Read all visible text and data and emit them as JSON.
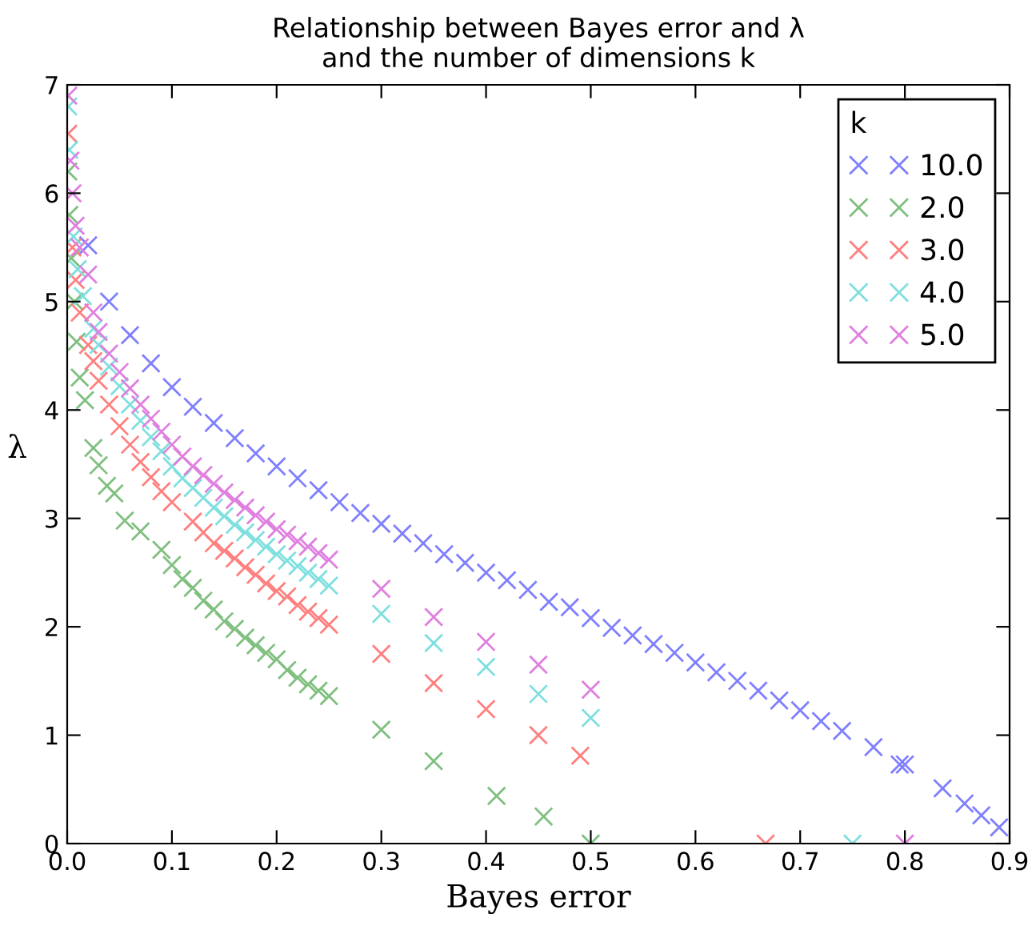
{
  "chart_data": {
    "type": "scatter",
    "title": "Relationship between Bayes error and λ\nand the number of dimensions k",
    "xlabel": "Bayes error",
    "ylabel": "λ",
    "legend_title": "k",
    "legend": "top right",
    "marker": "cross",
    "grid": false,
    "xlim": [
      0,
      0.9
    ],
    "xticks": [
      {
        "value": 0,
        "label": "0.0"
      },
      0.1,
      0.2,
      0.3,
      0.4,
      0.5,
      0.6,
      0.7,
      0.8,
      0.9
    ],
    "ylim": [
      0,
      7
    ],
    "yticks": [
      0,
      1,
      2,
      3,
      4,
      5,
      6,
      7
    ],
    "series": [
      {
        "name": "10.0",
        "color": "#7f7fff",
        "x": [
          0.02,
          0.04,
          0.06,
          0.08,
          0.1,
          0.12,
          0.14,
          0.16,
          0.18,
          0.2,
          0.22,
          0.24,
          0.26,
          0.28,
          0.3,
          0.32,
          0.34,
          0.36,
          0.38,
          0.4,
          0.42,
          0.44,
          0.46,
          0.48,
          0.5,
          0.52,
          0.54,
          0.56,
          0.58,
          0.6,
          0.62,
          0.64,
          0.66,
          0.68,
          0.7,
          0.72,
          0.74,
          0.77,
          0.795,
          0.8,
          0.836,
          0.857,
          0.873,
          0.89
        ],
        "values": [
          5.52,
          5.0,
          4.69,
          4.43,
          4.21,
          4.03,
          3.88,
          3.74,
          3.6,
          3.48,
          3.37,
          3.26,
          3.15,
          3.05,
          2.95,
          2.86,
          2.77,
          2.67,
          2.59,
          2.5,
          2.43,
          2.34,
          2.23,
          2.18,
          2.08,
          1.99,
          1.92,
          1.84,
          1.76,
          1.67,
          1.58,
          1.5,
          1.41,
          1.32,
          1.23,
          1.13,
          1.04,
          0.89,
          0.73,
          0.73,
          0.51,
          0.37,
          0.26,
          0.15
        ]
      },
      {
        "name": "2.0",
        "color": "#7fbf7f",
        "x": [
          0.001,
          0.002,
          0.004,
          0.007,
          0.009,
          0.012,
          0.017,
          0.025,
          0.03,
          0.038,
          0.045,
          0.055,
          0.07,
          0.09,
          0.1,
          0.11,
          0.12,
          0.13,
          0.14,
          0.15,
          0.16,
          0.17,
          0.18,
          0.19,
          0.2,
          0.21,
          0.22,
          0.23,
          0.24,
          0.25,
          0.3,
          0.35,
          0.41,
          0.455,
          0.5
        ],
        "values": [
          6.2,
          5.8,
          5.4,
          5.0,
          4.63,
          4.3,
          4.09,
          3.65,
          3.49,
          3.3,
          3.23,
          2.98,
          2.88,
          2.71,
          2.57,
          2.44,
          2.36,
          2.24,
          2.16,
          2.05,
          1.98,
          1.9,
          1.83,
          1.76,
          1.7,
          1.6,
          1.53,
          1.47,
          1.41,
          1.36,
          1.05,
          0.76,
          0.44,
          0.25,
          0.0
        ]
      },
      {
        "name": "3.0",
        "color": "#ff7f7f",
        "x": [
          0.001,
          0.003,
          0.005,
          0.008,
          0.012,
          0.02,
          0.025,
          0.03,
          0.04,
          0.05,
          0.06,
          0.07,
          0.08,
          0.09,
          0.1,
          0.12,
          0.13,
          0.14,
          0.15,
          0.16,
          0.17,
          0.18,
          0.19,
          0.2,
          0.21,
          0.22,
          0.23,
          0.24,
          0.25,
          0.3,
          0.35,
          0.4,
          0.45,
          0.49,
          0.667
        ],
        "values": [
          6.55,
          null,
          5.5,
          5.2,
          4.9,
          4.6,
          4.45,
          4.27,
          4.05,
          3.85,
          3.68,
          3.52,
          3.38,
          3.25,
          3.15,
          2.97,
          2.87,
          2.77,
          2.7,
          2.63,
          2.55,
          2.48,
          2.4,
          2.33,
          2.28,
          2.2,
          2.14,
          2.08,
          2.02,
          1.75,
          1.48,
          1.24,
          1.0,
          0.81,
          0.0
        ]
      },
      {
        "name": "4.0",
        "color": "#7fdfdf",
        "x": [
          0.001,
          0.002,
          0.004,
          0.006,
          0.01,
          0.015,
          0.025,
          0.03,
          0.04,
          0.05,
          0.06,
          0.07,
          0.08,
          0.09,
          0.1,
          0.11,
          0.12,
          0.13,
          0.14,
          0.15,
          0.16,
          0.17,
          0.18,
          0.19,
          0.2,
          0.21,
          0.22,
          0.23,
          0.24,
          0.25,
          0.3,
          0.35,
          0.4,
          0.45,
          0.5,
          0.75
        ],
        "values": [
          6.8,
          6.4,
          null,
          5.6,
          5.3,
          5.05,
          4.75,
          4.6,
          4.4,
          4.22,
          4.05,
          3.9,
          3.75,
          3.62,
          3.48,
          3.37,
          3.28,
          3.19,
          3.1,
          3.02,
          2.94,
          2.87,
          2.8,
          2.74,
          2.67,
          2.61,
          2.56,
          2.5,
          2.44,
          2.38,
          2.12,
          1.85,
          1.63,
          1.38,
          1.16,
          0.0
        ]
      },
      {
        "name": "5.0",
        "color": "#df7fdf",
        "x": [
          0.001,
          0.003,
          0.005,
          0.008,
          0.012,
          0.02,
          0.025,
          0.03,
          0.04,
          0.05,
          0.06,
          0.07,
          0.08,
          0.09,
          0.1,
          0.11,
          0.12,
          0.13,
          0.14,
          0.15,
          0.16,
          0.17,
          0.18,
          0.19,
          0.2,
          0.21,
          0.22,
          0.23,
          0.24,
          0.25,
          0.3,
          0.35,
          0.4,
          0.45,
          0.5,
          0.8
        ],
        "values": [
          6.9,
          6.3,
          6.0,
          5.7,
          5.5,
          5.25,
          4.9,
          4.72,
          4.52,
          4.35,
          4.2,
          4.05,
          3.92,
          3.8,
          3.68,
          3.57,
          3.48,
          3.4,
          3.32,
          3.24,
          3.17,
          3.1,
          3.03,
          2.97,
          2.9,
          2.85,
          2.79,
          2.74,
          2.68,
          2.62,
          2.35,
          2.09,
          1.86,
          1.65,
          1.42,
          0.0
        ]
      }
    ]
  }
}
